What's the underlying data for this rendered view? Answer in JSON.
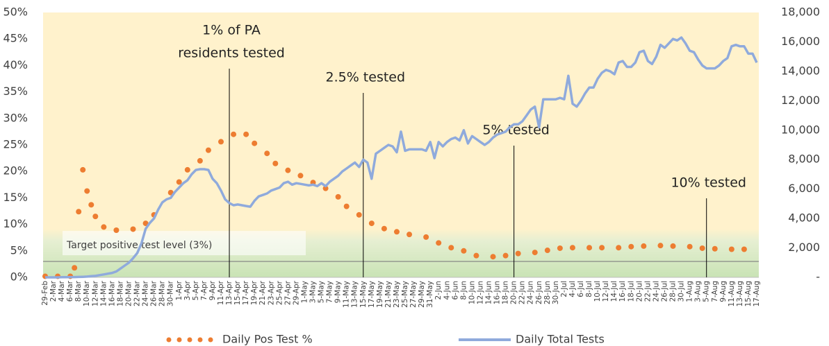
{
  "chart_data": {
    "type": "combo",
    "categories": [
      "29-Feb",
      null,
      "2-Mar",
      null,
      "4-Mar",
      null,
      "6-Mar",
      null,
      "8-Mar",
      null,
      "10-Mar",
      null,
      "12-Mar",
      null,
      "14-Mar",
      null,
      "16-Mar",
      null,
      "18-Mar",
      null,
      "20-Mar",
      null,
      "22-Mar",
      null,
      "24-Mar",
      null,
      "26-Mar",
      null,
      "28-Mar",
      null,
      "30-Mar",
      null,
      "1-Apr",
      null,
      "3-Apr",
      null,
      "5-Apr",
      null,
      "7-Apr",
      null,
      "9-Apr",
      null,
      "11-Apr",
      null,
      "13-Apr",
      null,
      "15-Apr",
      null,
      "17-Apr",
      null,
      "19-Apr",
      null,
      "21-Apr",
      null,
      "23-Apr",
      null,
      "25-Apr",
      null,
      "27-Apr",
      null,
      "29-Apr",
      null,
      "1-May",
      null,
      "3-May",
      null,
      "5-May",
      null,
      "7-May",
      null,
      "9-May",
      null,
      "11-May",
      null,
      "13-May",
      null,
      "15-May",
      null,
      "17-May",
      null,
      "19-May",
      null,
      "21-May",
      null,
      "23-May",
      null,
      "25-May",
      null,
      "27-May",
      null,
      "29-May",
      null,
      "31-May",
      null,
      "2-Jun",
      null,
      "4-Jun",
      null,
      "6-Jun",
      null,
      "8-Jun",
      null,
      "10-Jun",
      null,
      "12-Jun",
      null,
      "14-Jun",
      null,
      "16-Jun",
      null,
      "18-Jun",
      null,
      "20-Jun",
      null,
      "22-Jun",
      null,
      "24-Jun",
      null,
      "26-Jun",
      null,
      "28-Jun",
      null,
      "30-Jun",
      null,
      "2-Jul",
      null,
      "4-Jul",
      null,
      "6-Jul",
      null,
      "8-Jul",
      null,
      "10-Jul",
      null,
      "12-Jul",
      null,
      "14-Jul",
      null,
      "16-Jul",
      null,
      "18-Jul",
      null,
      "20-Jul",
      null,
      "22-Jul",
      null,
      "24-Jul",
      null,
      "26-Jul",
      null,
      "28-Jul",
      null,
      "30-Jul",
      null,
      "1-Aug",
      null,
      "3-Aug",
      null,
      "5-Aug",
      null,
      "7-Aug",
      null,
      "9-Aug",
      null,
      "11-Aug",
      null,
      "13-Aug",
      null,
      "15-Aug",
      null,
      "17-Aug"
    ],
    "series": [
      {
        "name": "Daily Pos Test %",
        "kind": "dots",
        "color": "#ed7d31",
        "values": [
          0.2,
          null,
          null,
          0.2,
          null,
          null,
          0.2,
          1.8,
          12.4,
          20.3,
          16.3,
          13.7,
          11.5,
          null,
          9.5,
          null,
          null,
          8.9,
          null,
          null,
          null,
          9.1,
          null,
          null,
          10.2,
          null,
          11.8,
          null,
          null,
          null,
          16,
          null,
          18,
          null,
          20.3,
          null,
          null,
          22,
          null,
          24,
          null,
          null,
          25.6,
          null,
          null,
          27,
          null,
          null,
          27,
          null,
          25.3,
          null,
          null,
          23.4,
          null,
          21.5,
          null,
          null,
          20.2,
          null,
          null,
          19.2,
          null,
          null,
          17.9,
          null,
          null,
          16.8,
          null,
          null,
          15.2,
          null,
          13.4,
          null,
          null,
          11.8,
          null,
          null,
          10.2,
          null,
          null,
          9.2,
          null,
          null,
          8.6,
          null,
          null,
          8.1,
          null,
          null,
          null,
          7.6,
          null,
          null,
          6.5,
          null,
          null,
          5.6,
          null,
          null,
          5,
          null,
          null,
          4.1,
          null,
          null,
          null,
          3.9,
          null,
          null,
          4.1,
          null,
          null,
          4.5,
          null,
          null,
          null,
          4.7,
          null,
          null,
          5.1,
          null,
          null,
          5.5,
          null,
          null,
          5.6,
          null,
          null,
          null,
          5.6,
          null,
          null,
          5.6,
          null,
          null,
          null,
          5.6,
          null,
          null,
          5.8,
          null,
          null,
          5.9,
          null,
          null,
          null,
          6,
          null,
          null,
          5.9,
          null,
          null,
          null,
          5.8,
          null,
          null,
          5.5,
          null,
          null,
          5.4,
          null,
          null,
          null,
          5.3,
          null,
          null,
          5.3,
          null,
          null,
          null
        ]
      },
      {
        "name": "Daily Total Tests",
        "kind": "line",
        "axis": "y2",
        "color": "#8faadc",
        "values": [
          0,
          0,
          0,
          0,
          10,
          10,
          20,
          20,
          30,
          40,
          50,
          80,
          100,
          150,
          200,
          250,
          300,
          400,
          600,
          800,
          1000,
          1300,
          1650,
          2300,
          3300,
          3700,
          4000,
          4600,
          5100,
          5300,
          5400,
          5800,
          6100,
          6400,
          6600,
          7000,
          7300,
          7350,
          7350,
          7300,
          6700,
          6400,
          5900,
          5300,
          5050,
          4900,
          4950,
          4900,
          4850,
          4800,
          5200,
          5500,
          5600,
          5700,
          5900,
          6000,
          6100,
          6400,
          6500,
          6300,
          6400,
          6350,
          6300,
          6250,
          6300,
          6200,
          6400,
          6200,
          6500,
          6700,
          6900,
          7200,
          7400,
          7600,
          7800,
          7500,
          8000,
          7800,
          6700,
          8400,
          8600,
          8800,
          9000,
          8900,
          8500,
          9900,
          8600,
          8700,
          8700,
          8700,
          8700,
          8600,
          9200,
          8100,
          9200,
          8900,
          9200,
          9400,
          9500,
          9300,
          10000,
          9100,
          9600,
          9400,
          9200,
          9000,
          9200,
          9500,
          9700,
          9800,
          9900,
          10200,
          10400,
          10400,
          10600,
          11000,
          11400,
          11600,
          10200,
          12100,
          12100,
          12100,
          12100,
          12200,
          12100,
          13700,
          11800,
          11600,
          12000,
          12500,
          12900,
          12900,
          13500,
          13900,
          14100,
          14000,
          13800,
          14600,
          14700,
          14300,
          14300,
          14600,
          15300,
          15400,
          14700,
          14500,
          15000,
          15800,
          15600,
          15900,
          16200,
          16100,
          16300,
          15900,
          15400,
          15300,
          14800,
          14400,
          14200,
          14200,
          14200,
          14400,
          14700,
          14900,
          15700,
          15800,
          15700,
          15700,
          15200,
          15200,
          14600
        ]
      }
    ],
    "ylim": [
      0,
      50
    ],
    "yticks": [
      {
        "value": 0,
        "label": "0%"
      },
      {
        "value": 5,
        "label": "5%"
      },
      {
        "value": 10,
        "label": "10%"
      },
      {
        "value": 15,
        "label": "15%"
      },
      {
        "value": 20,
        "label": "20%"
      },
      {
        "value": 25,
        "label": "25%"
      },
      {
        "value": 30,
        "label": "30%"
      },
      {
        "value": 35,
        "label": "35%"
      },
      {
        "value": 40,
        "label": "40%"
      },
      {
        "value": 45,
        "label": "45%"
      },
      {
        "value": 50,
        "label": "50%"
      }
    ],
    "y2lim": [
      0,
      18000
    ],
    "y2ticks": [
      {
        "value": 0,
        "label": "-"
      },
      {
        "value": 2000,
        "label": "2,000"
      },
      {
        "value": 4000,
        "label": "4,000"
      },
      {
        "value": 6000,
        "label": "6,000"
      },
      {
        "value": 8000,
        "label": "8,000"
      },
      {
        "value": 10000,
        "label": "10,000"
      },
      {
        "value": 12000,
        "label": "12,000"
      },
      {
        "value": 14000,
        "label": "14,000"
      },
      {
        "value": 16000,
        "label": "16,000"
      },
      {
        "value": 18000,
        "label": "18,000"
      }
    ],
    "target": {
      "value": 3,
      "label": "Target positive test level (3%)"
    },
    "annotations": [
      {
        "x": "13-Apr",
        "text": [
          "1% of PA",
          "residents tested"
        ]
      },
      {
        "x": "15-May",
        "text": [
          "2.5% tested"
        ]
      },
      {
        "x": "20-Jun",
        "text": [
          "5% tested"
        ]
      },
      {
        "x": "5-Aug",
        "text": [
          "10% tested"
        ]
      }
    ],
    "legend": "bottom"
  }
}
